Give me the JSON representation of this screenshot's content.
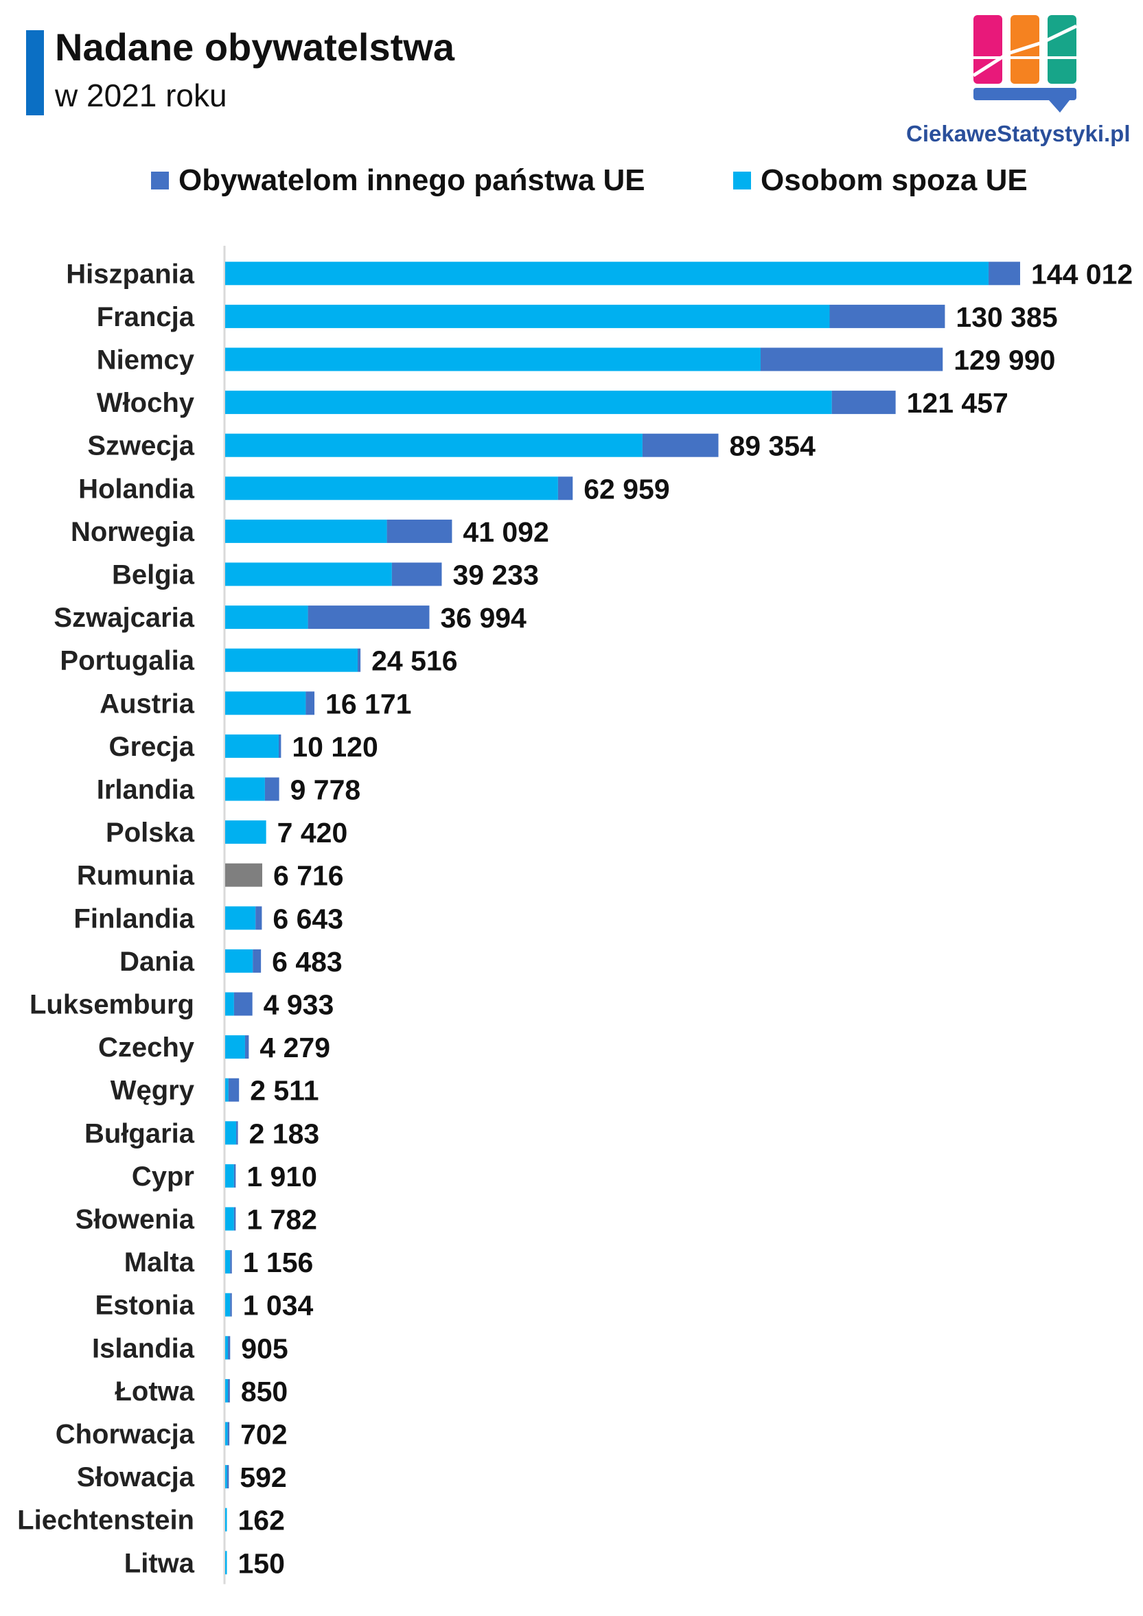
{
  "header": {
    "title": "Nadane obywatelstwa",
    "subtitle": "w 2021 roku",
    "brand": "CiekaweStatystyki.pl"
  },
  "colors": {
    "accent_bar": "#0b6fc4",
    "non_eu": "#00b0f0",
    "other_eu": "#4472c4",
    "unsplit": "#7f7f7f",
    "highlight_value": "#a31515",
    "axis": "#d9d9d9",
    "logo_pink": "#e8197a",
    "logo_orange": "#f58220",
    "logo_green": "#17a589",
    "logo_blue": "#3f6fc4"
  },
  "legend": [
    {
      "label": "Obywatelom innego państwa UE",
      "color": "#4472c4"
    },
    {
      "label": "Osobom spoza UE",
      "color": "#00b0f0"
    }
  ],
  "chart_data": {
    "type": "bar",
    "orientation": "horizontal",
    "stacked": true,
    "title": "Nadane obywatelstwa",
    "subtitle": "w 2021 roku",
    "legend_position": "top",
    "grid": false,
    "categories": [
      "Hiszpania",
      "Francja",
      "Niemcy",
      "Włochy",
      "Szwecja",
      "Holandia",
      "Norwegia",
      "Belgia",
      "Szwajcaria",
      "Portugalia",
      "Austria",
      "Grecja",
      "Irlandia",
      "Polska",
      "Rumunia",
      "Finlandia",
      "Dania",
      "Luksemburg",
      "Czechy",
      "Węgry",
      "Bułgaria",
      "Cypr",
      "Słowenia",
      "Malta",
      "Estonia",
      "Islandia",
      "Łotwa",
      "Chorwacja",
      "Słowacja",
      "Liechtenstein",
      "Litwa"
    ],
    "totals": [
      144012,
      130385,
      129990,
      121457,
      89354,
      62959,
      41092,
      39233,
      36994,
      24516,
      16171,
      10120,
      9778,
      7420,
      6716,
      6643,
      6483,
      4933,
      4279,
      2511,
      2183,
      1910,
      1782,
      1156,
      1034,
      905,
      850,
      702,
      592,
      162,
      150
    ],
    "total_labels": [
      "144 012",
      "130 385",
      "129 990",
      "121 457",
      "89 354",
      "62 959",
      "41 092",
      "39 233",
      "36 994",
      "24 516",
      "16 171",
      "10 120",
      "9 778",
      "7 420",
      "6 716",
      "6 643",
      "6 483",
      "4 933",
      "4 279",
      "2 511",
      "2 183",
      "1 910",
      "1 782",
      "1 156",
      "1 034",
      "905",
      "850",
      "702",
      "592",
      "162",
      "150"
    ],
    "series": [
      {
        "name": "Osobom spoza UE",
        "color": "#00b0f0",
        "values": [
          138300,
          109500,
          97000,
          109900,
          75600,
          60300,
          29300,
          30200,
          15000,
          24000,
          14600,
          9700,
          7200,
          7420,
          0,
          5500,
          5000,
          1600,
          3600,
          600,
          2000,
          1600,
          1600,
          900,
          900,
          500,
          500,
          450,
          350,
          162,
          150
        ]
      },
      {
        "name": "Obywatelom innego państwa UE",
        "color": "#4472c4",
        "values": [
          5712,
          20885,
          32990,
          11557,
          13754,
          2659,
          11792,
          9033,
          21994,
          516,
          1571,
          420,
          2578,
          0,
          0,
          1143,
          1483,
          3333,
          679,
          1911,
          183,
          310,
          182,
          256,
          134,
          405,
          350,
          252,
          242,
          0,
          0
        ]
      },
      {
        "name": "",
        "color": "#7f7f7f",
        "values": [
          0,
          0,
          0,
          0,
          0,
          0,
          0,
          0,
          0,
          0,
          0,
          0,
          0,
          0,
          6716,
          0,
          0,
          0,
          0,
          0,
          0,
          0,
          0,
          0,
          0,
          0,
          0,
          0,
          0,
          0,
          0
        ]
      }
    ],
    "highlight_category": "Polska",
    "xlim": [
      0,
      144012
    ]
  }
}
